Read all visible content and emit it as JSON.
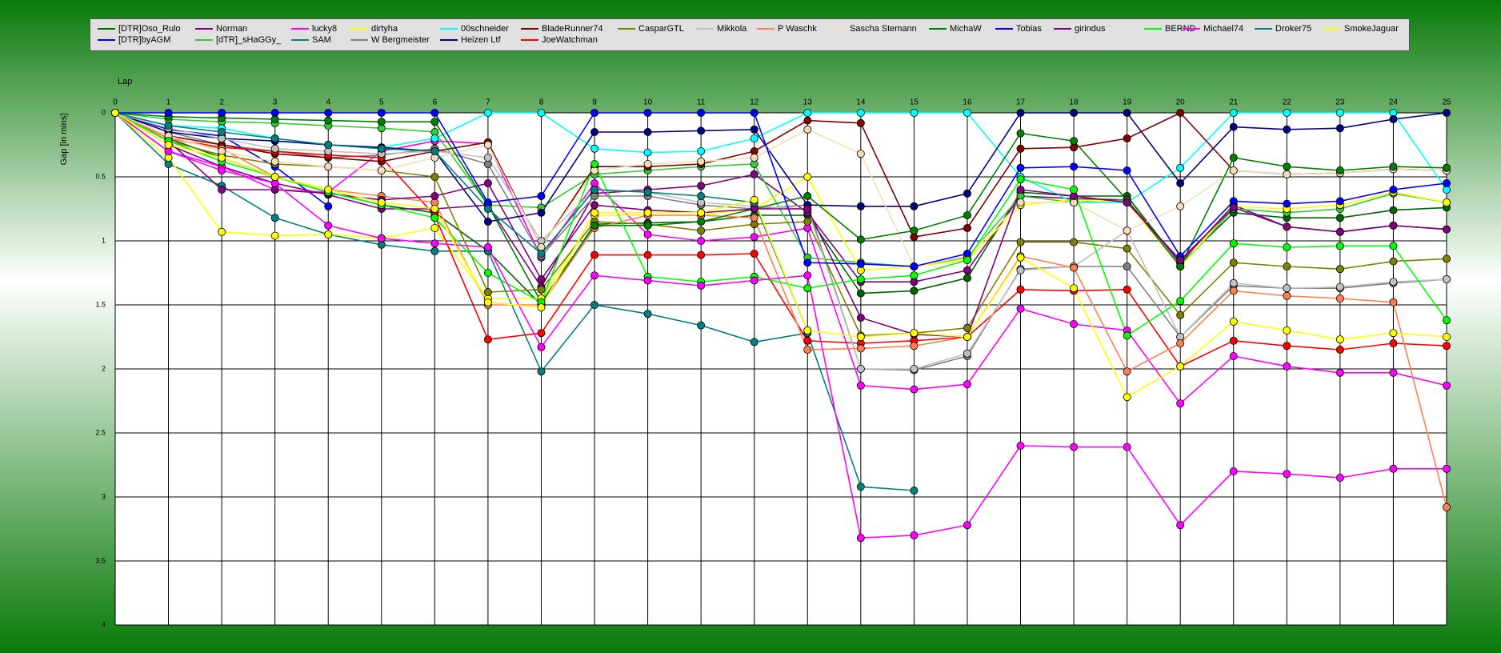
{
  "chart_data": {
    "type": "line",
    "x_label": "Lap",
    "y_label": "Gap [in mins]",
    "x": [
      0,
      1,
      2,
      3,
      4,
      5,
      6,
      7,
      8,
      9,
      10,
      11,
      12,
      13,
      14,
      15,
      16,
      17,
      18,
      19,
      20,
      21,
      22,
      23,
      24,
      25
    ],
    "xlim": [
      0,
      25
    ],
    "xticks": [
      0,
      1,
      2,
      3,
      4,
      5,
      6,
      7,
      8,
      9,
      10,
      11,
      12,
      13,
      14,
      15,
      16,
      17,
      18,
      19,
      20,
      21,
      22,
      23,
      24,
      25
    ],
    "ylim": [
      0,
      4
    ],
    "yticks": [
      0,
      0.5,
      1,
      1.5,
      2,
      2.5,
      3,
      3.5,
      4
    ],
    "y_inverted": true,
    "grid": true,
    "legend": "top",
    "series": [
      {
        "name": "[DTR]Oso_Rulo",
        "color": "#006400",
        "values": [
          0,
          0.2,
          0.35,
          0.5,
          0.62,
          0.72,
          0.78,
          1.08,
          1.5,
          0.87,
          0.86,
          0.85,
          0.8,
          0.8,
          1.41,
          1.39,
          1.29,
          0.62,
          0.65,
          0.65,
          1.18,
          0.78,
          0.82,
          0.82,
          0.76,
          0.74
        ]
      },
      {
        "name": "[DTR]byAGM",
        "color": "#0000ff",
        "values": [
          0,
          0.13,
          0.18,
          0.42,
          0.73,
          null,
          null,
          null,
          null,
          null,
          null,
          null,
          null,
          null,
          null,
          null,
          null,
          null,
          null,
          null,
          null,
          null,
          null,
          null,
          null,
          null
        ]
      },
      {
        "name": "Norman",
        "color": "#800080",
        "values": [
          0,
          0.25,
          0.42,
          0.55,
          0.64,
          0.75,
          0.75,
          0.72,
          1.36,
          0.63,
          0.6,
          0.57,
          0.48,
          0.78,
          1.32,
          1.32,
          1.23,
          0.65,
          0.67,
          0.68,
          1.17,
          0.72,
          0.89,
          0.93,
          0.88,
          0.91
        ]
      },
      {
        "name": "[dTR]_sHaGGy_",
        "color": "#32cd32",
        "values": [
          0,
          0.05,
          0.07,
          0.08,
          0.1,
          0.12,
          0.15,
          0.72,
          0.74,
          0.48,
          0.45,
          0.42,
          0.4,
          1.13,
          1.17,
          1.2,
          1.13,
          0.65,
          0.7,
          0.68,
          1.2,
          0.75,
          0.78,
          0.75,
          0.63,
          0.7
        ]
      },
      {
        "name": "lucky8",
        "color": "#ff00ff",
        "values": [
          0,
          0.3,
          0.42,
          0.6,
          0.62,
          0.3,
          0.22,
          0.24,
          1.13,
          0.55,
          0.95,
          1.0,
          0.97,
          0.9,
          2.13,
          2.16,
          2.12,
          1.53,
          1.65,
          1.7,
          2.27,
          1.9,
          1.98,
          2.03,
          2.03,
          2.13
        ]
      },
      {
        "name": "SAM",
        "color": "#008080",
        "values": [
          0,
          0.4,
          0.57,
          0.82,
          0.95,
          1.03,
          1.08,
          1.08,
          2.02,
          1.5,
          1.57,
          1.66,
          1.79,
          1.72,
          2.92,
          2.95,
          null,
          null,
          null,
          null,
          null,
          null,
          null,
          null,
          null,
          null
        ]
      },
      {
        "name": "dirtyha",
        "color": "#ffff00",
        "values": [
          0,
          0.35,
          0.93,
          0.96,
          0.95,
          0.98,
          0.9,
          1.45,
          1.45,
          0.8,
          0.8,
          0.8,
          0.75,
          0.5,
          1.23,
          1.2,
          1.15,
          0.72,
          0.68,
          0.7,
          1.2,
          0.73,
          0.75,
          0.72,
          0.62,
          0.7
        ]
      },
      {
        "name": "W Bergmeister",
        "color": "#808080",
        "values": [
          0,
          0.15,
          0.25,
          0.3,
          0.35,
          0.33,
          0.28,
          0.4,
          1.12,
          0.65,
          0.65,
          0.72,
          0.75,
          0.72,
          2.0,
          2.01,
          1.9,
          1.22,
          1.2,
          1.2,
          1.75,
          1.35,
          1.37,
          1.37,
          1.33,
          1.3
        ]
      },
      {
        "name": "00schneider",
        "color": "#00ffff",
        "values": [
          0,
          0.1,
          0.12,
          0.2,
          0.25,
          0.27,
          0.2,
          0,
          0,
          0.28,
          0.31,
          0.3,
          0.2,
          0,
          0,
          0,
          0,
          0.5,
          0.7,
          0.7,
          0.43,
          0,
          0,
          0,
          0,
          0.6
        ]
      },
      {
        "name": "Heizen Ltf",
        "color": "#000080",
        "values": [
          0,
          0.15,
          0.2,
          0.22,
          0.25,
          0.27,
          0.3,
          0.85,
          0.78,
          0.15,
          0.15,
          0.14,
          0.13,
          0.72,
          0.73,
          0.73,
          0.63,
          0,
          0,
          0,
          0.55,
          0.11,
          0.13,
          0.12,
          0.05,
          0
        ]
      },
      {
        "name": "BladeRunner74",
        "color": "#800000",
        "values": [
          0,
          0.18,
          0.25,
          0.32,
          0.35,
          0.38,
          0.3,
          0.23,
          1.05,
          0.42,
          0.42,
          0.4,
          0.3,
          0.06,
          0.08,
          0.97,
          0.9,
          0.28,
          0.27,
          0.2,
          0,
          0.45,
          0.48,
          0.47,
          0.44,
          0.45
        ]
      },
      {
        "name": "JoeWatchman",
        "color": "#ff0000",
        "values": [
          0,
          0.2,
          0.27,
          0.3,
          0.33,
          0.35,
          0.8,
          1.77,
          1.72,
          1.11,
          1.11,
          1.11,
          1.1,
          1.78,
          1.8,
          1.78,
          1.75,
          1.38,
          1.39,
          1.38,
          1.98,
          1.78,
          1.82,
          1.85,
          1.8,
          1.82
        ]
      },
      {
        "name": "CasparGTL",
        "color": "#808000",
        "values": [
          0,
          0.22,
          0.33,
          0.4,
          0.42,
          0.45,
          0.5,
          1.4,
          1.38,
          0.85,
          0.87,
          0.92,
          0.87,
          0.85,
          1.74,
          1.72,
          1.68,
          1.01,
          1.01,
          1.06,
          1.58,
          1.17,
          1.2,
          1.22,
          1.16,
          1.14
        ]
      },
      {
        "name": "Mikkola",
        "color": "#c0c0c0",
        "values": [
          0,
          0.12,
          0.2,
          0.28,
          0.3,
          0.32,
          0.3,
          0.35,
          1.0,
          0.6,
          0.62,
          0.7,
          0.73,
          0.75,
          2.0,
          2.0,
          1.88,
          1.23,
          1.2,
          0.92,
          1.75,
          1.33,
          1.37,
          1.36,
          1.32,
          1.3
        ]
      },
      {
        "name": "P Waschk",
        "color": "#ff7f50",
        "values": [
          0,
          0.2,
          0.28,
          0.5,
          0.6,
          0.65,
          0.7,
          1.5,
          1.5,
          0.9,
          0.8,
          0.8,
          0.82,
          1.85,
          1.84,
          1.82,
          1.75,
          1.12,
          1.21,
          2.02,
          1.8,
          1.39,
          1.43,
          1.45,
          1.48,
          3.08
        ]
      },
      {
        "name": "Sascha Stemann",
        "color": "#f5deb3",
        "values": [
          0,
          0.18,
          0.3,
          0.38,
          0.42,
          0.45,
          0.35,
          0.25,
          1.05,
          0.45,
          0.4,
          0.38,
          0.35,
          0.13,
          0.32,
          1.2,
          1.12,
          0.7,
          0.7,
          0.92,
          0.73,
          0.45,
          0.48,
          0.47,
          0.44,
          0.45
        ]
      },
      {
        "name": "MichaW",
        "color": "#008000",
        "values": [
          0,
          0.03,
          0.04,
          0.05,
          0.06,
          0.07,
          0.07,
          0.72,
          1.48,
          0.88,
          0.88,
          0.85,
          0.75,
          0.65,
          0.99,
          0.92,
          0.8,
          0.16,
          0.22,
          0.68,
          1.2,
          0.35,
          0.42,
          0.45,
          0.42,
          0.43
        ]
      },
      {
        "name": "Tobias",
        "color": "#0000ff",
        "values": [
          0,
          0,
          0,
          0,
          0,
          0,
          0,
          0.7,
          0.65,
          0,
          0,
          0,
          0,
          1.17,
          1.18,
          1.2,
          1.1,
          0.43,
          0.42,
          0.45,
          1.12,
          0.69,
          0.71,
          0.69,
          0.6,
          0.55
        ]
      },
      {
        "name": "girindus",
        "color": "#800080",
        "values": [
          0,
          0.22,
          0.6,
          0.6,
          0.63,
          0.68,
          0.65,
          0.55,
          1.3,
          0.72,
          0.76,
          0.78,
          0.75,
          0.75,
          1.6,
          1.73,
          1.75,
          0.6,
          0.65,
          0.7,
          1.15,
          0.74,
          0.89,
          0.93,
          0.88,
          0.91
        ]
      },
      {
        "name": "BERND",
        "color": "#00ff00",
        "values": [
          0,
          0.22,
          0.38,
          0.5,
          0.62,
          0.72,
          0.82,
          1.25,
          1.48,
          0.4,
          1.28,
          1.32,
          1.28,
          1.37,
          1.3,
          1.27,
          1.15,
          0.52,
          0.6,
          1.74,
          1.47,
          1.02,
          1.05,
          1.04,
          1.04,
          1.62
        ]
      },
      {
        "name": "Michael74",
        "color": "#ff00ff",
        "values": [
          0,
          0.3,
          0.45,
          0.55,
          0.88,
          0.98,
          1.02,
          1.05,
          1.83,
          1.27,
          1.31,
          1.35,
          1.31,
          1.27,
          3.32,
          3.3,
          3.22,
          2.6,
          2.61,
          2.61,
          3.22,
          2.8,
          2.82,
          2.85,
          2.78,
          2.78
        ]
      },
      {
        "name": "Droker75",
        "color": "#008080",
        "values": [
          0,
          0.1,
          0.15,
          0.2,
          0.25,
          0.28,
          0.3,
          0.75,
          1.1,
          0.6,
          0.62,
          0.65,
          0.7,
          1.7,
          null,
          null,
          null,
          null,
          null,
          null,
          null,
          null,
          null,
          null,
          null,
          null
        ]
      },
      {
        "name": "SmokeJaguar",
        "color": "#ffff00",
        "values": [
          0,
          0.25,
          0.35,
          0.5,
          0.6,
          0.7,
          0.75,
          1.48,
          1.52,
          0.78,
          0.78,
          0.78,
          0.68,
          1.7,
          1.75,
          1.72,
          1.75,
          1.13,
          1.37,
          2.22,
          1.98,
          1.63,
          1.7,
          1.77,
          1.72,
          1.75
        ]
      }
    ]
  }
}
